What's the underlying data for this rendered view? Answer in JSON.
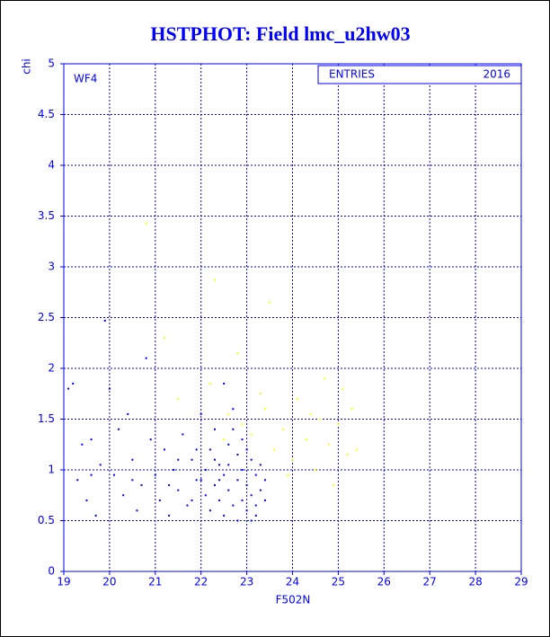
{
  "chart_data": {
    "type": "scatter",
    "title": "HSTPHOT: Field lmc_u2hw03",
    "annotation": "WF4",
    "stats_label": "ENTRIES",
    "entries": 2016,
    "xlabel": "F502N",
    "ylabel": "chi",
    "xlim": [
      19,
      29
    ],
    "ylim": [
      0,
      5
    ],
    "xticks": [
      19,
      20,
      21,
      22,
      23,
      24,
      25,
      26,
      27,
      28,
      29
    ],
    "yticks": [
      0,
      0.5,
      1,
      1.5,
      2,
      2.5,
      3,
      3.5,
      4,
      4.5,
      5
    ],
    "grid": true,
    "series": [
      {
        "color": "#0000ff",
        "x": [
          19.1,
          19.2,
          19.3,
          19.4,
          19.5,
          19.6,
          19.7,
          19.8,
          19.9,
          20.0,
          20.1,
          20.2,
          20.3,
          20.4,
          20.5,
          20.6,
          20.7,
          20.8,
          20.9,
          21.0,
          21.1,
          21.2,
          21.3,
          21.4,
          21.5,
          21.6,
          21.7,
          21.8,
          21.9,
          22.0,
          22.1,
          22.1,
          22.2,
          22.2,
          22.3,
          22.3,
          22.4,
          22.4,
          22.5,
          22.5,
          22.6,
          22.6,
          22.7,
          22.7,
          22.8,
          22.8,
          22.9,
          22.9,
          23.0,
          23.0,
          23.1,
          23.1,
          23.2,
          23.2,
          23.3,
          23.3,
          23.4,
          23.4,
          22.0,
          21.8,
          22.5,
          22.9,
          23.0,
          22.6,
          22.4,
          23.2,
          21.5,
          21.3,
          20.5,
          19.6,
          23.1,
          22.8,
          22.7,
          22.3,
          21.9
        ],
        "y": [
          1.8,
          1.85,
          0.9,
          1.25,
          0.7,
          1.3,
          0.55,
          1.05,
          2.47,
          1.8,
          0.95,
          1.4,
          0.75,
          1.55,
          1.1,
          0.6,
          0.85,
          2.1,
          1.3,
          0.95,
          0.7,
          1.2,
          0.55,
          1.0,
          0.8,
          1.35,
          0.65,
          1.1,
          0.9,
          1.55,
          0.75,
          1.0,
          0.6,
          1.2,
          0.85,
          1.4,
          0.7,
          1.05,
          0.95,
          0.55,
          1.25,
          0.8,
          1.6,
          0.65,
          0.9,
          1.15,
          0.7,
          1.0,
          0.85,
          0.6,
          1.1,
          0.75,
          0.95,
          0.55,
          0.8,
          1.05,
          0.9,
          0.7,
          0.9,
          0.7,
          1.85,
          1.3,
          1.2,
          1.05,
          0.9,
          0.65,
          1.1,
          0.85,
          0.9,
          0.95,
          0.5,
          0.5,
          1.4,
          1.1,
          1.2
        ]
      },
      {
        "color": "#ffff00",
        "x": [
          21.2,
          21.5,
          22.2,
          22.6,
          22.9,
          23.1,
          23.4,
          23.6,
          23.8,
          24.0,
          24.1,
          24.3,
          24.5,
          24.6,
          24.8,
          24.9,
          25.0,
          25.2,
          25.3,
          25.4,
          22.3,
          23.5,
          20.8,
          22.8,
          24.7,
          25.1,
          23.9,
          24.4,
          22.5,
          23.3
        ],
        "y": [
          2.3,
          1.7,
          1.85,
          1.55,
          1.45,
          1.35,
          1.6,
          1.2,
          1.4,
          1.1,
          1.7,
          1.3,
          1.0,
          1.5,
          1.25,
          0.85,
          1.45,
          1.15,
          1.6,
          1.2,
          2.87,
          2.65,
          3.43,
          2.15,
          1.9,
          1.8,
          0.95,
          1.55,
          1.3,
          1.75
        ]
      }
    ]
  }
}
